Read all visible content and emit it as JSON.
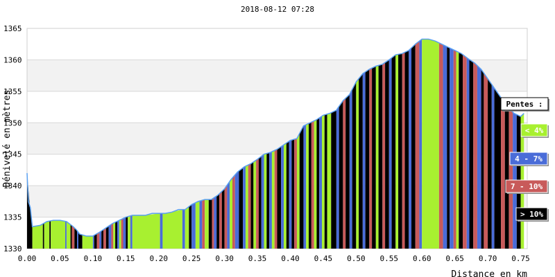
{
  "chart_data": {
    "type": "area",
    "title": "2018-08-12 07:28",
    "xlabel": "Distance en km",
    "ylabel": "Dénivelé en mètres",
    "xlim": [
      0,
      0.76
    ],
    "ylim": [
      1330,
      1365
    ],
    "x_ticks": [
      "0.00",
      "0.05",
      "0.10",
      "0.15",
      "0.20",
      "0.25",
      "0.30",
      "0.35",
      "0.40",
      "0.45",
      "0.50",
      "0.55",
      "0.60",
      "0.65",
      "0.70",
      "0.75"
    ],
    "y_ticks": [
      "1330",
      "1335",
      "1340",
      "1345",
      "1350",
      "1355",
      "1360",
      "1365"
    ],
    "grid": "horizontal bands",
    "profile": [
      [
        0.0,
        1342.0
      ],
      [
        0.002,
        1337.5
      ],
      [
        0.005,
        1336.5
      ],
      [
        0.008,
        1333.5
      ],
      [
        0.02,
        1333.7
      ],
      [
        0.03,
        1334.3
      ],
      [
        0.04,
        1334.5
      ],
      [
        0.05,
        1334.5
      ],
      [
        0.06,
        1334.3
      ],
      [
        0.07,
        1333.5
      ],
      [
        0.075,
        1333.0
      ],
      [
        0.08,
        1332.3
      ],
      [
        0.09,
        1332.0
      ],
      [
        0.1,
        1332.0
      ],
      [
        0.11,
        1332.6
      ],
      [
        0.12,
        1333.3
      ],
      [
        0.13,
        1334.0
      ],
      [
        0.14,
        1334.5
      ],
      [
        0.15,
        1335.0
      ],
      [
        0.16,
        1335.3
      ],
      [
        0.18,
        1335.3
      ],
      [
        0.19,
        1335.6
      ],
      [
        0.21,
        1335.6
      ],
      [
        0.22,
        1335.8
      ],
      [
        0.23,
        1336.2
      ],
      [
        0.24,
        1336.2
      ],
      [
        0.25,
        1337.0
      ],
      [
        0.26,
        1337.5
      ],
      [
        0.27,
        1337.8
      ],
      [
        0.28,
        1337.8
      ],
      [
        0.29,
        1338.5
      ],
      [
        0.3,
        1339.5
      ],
      [
        0.31,
        1341.0
      ],
      [
        0.32,
        1342.2
      ],
      [
        0.33,
        1343.0
      ],
      [
        0.34,
        1343.5
      ],
      [
        0.35,
        1344.2
      ],
      [
        0.36,
        1345.0
      ],
      [
        0.37,
        1345.3
      ],
      [
        0.38,
        1345.8
      ],
      [
        0.39,
        1346.5
      ],
      [
        0.4,
        1347.2
      ],
      [
        0.41,
        1347.5
      ],
      [
        0.42,
        1349.5
      ],
      [
        0.43,
        1350.0
      ],
      [
        0.44,
        1350.5
      ],
      [
        0.45,
        1351.2
      ],
      [
        0.46,
        1351.5
      ],
      [
        0.47,
        1352.0
      ],
      [
        0.48,
        1353.5
      ],
      [
        0.49,
        1354.5
      ],
      [
        0.5,
        1356.5
      ],
      [
        0.51,
        1357.8
      ],
      [
        0.52,
        1358.5
      ],
      [
        0.53,
        1359.0
      ],
      [
        0.54,
        1359.3
      ],
      [
        0.55,
        1360.0
      ],
      [
        0.56,
        1360.8
      ],
      [
        0.57,
        1361.0
      ],
      [
        0.58,
        1361.5
      ],
      [
        0.59,
        1362.5
      ],
      [
        0.6,
        1363.3
      ],
      [
        0.61,
        1363.3
      ],
      [
        0.62,
        1363.0
      ],
      [
        0.63,
        1362.5
      ],
      [
        0.64,
        1362.0
      ],
      [
        0.65,
        1361.5
      ],
      [
        0.66,
        1361.0
      ],
      [
        0.67,
        1360.2
      ],
      [
        0.68,
        1359.5
      ],
      [
        0.69,
        1358.5
      ],
      [
        0.7,
        1357.0
      ],
      [
        0.71,
        1355.5
      ],
      [
        0.72,
        1354.0
      ],
      [
        0.73,
        1352.5
      ],
      [
        0.74,
        1351.5
      ],
      [
        0.75,
        1351.0
      ],
      [
        0.755,
        1351.5
      ]
    ],
    "series": [
      {
        "name": "< 4%",
        "color": "#a8f030"
      },
      {
        "name": "4 - 7%",
        "color": "#4a6cd8"
      },
      {
        "name": "7 - 10%",
        "color": "#c85a5a"
      },
      {
        "name": "> 10%",
        "color": "#000000"
      }
    ],
    "stripes": [
      [
        0.0,
        0.008,
        3
      ],
      [
        0.008,
        0.024,
        0
      ],
      [
        0.024,
        0.026,
        3
      ],
      [
        0.026,
        0.034,
        0
      ],
      [
        0.034,
        0.036,
        3
      ],
      [
        0.036,
        0.058,
        0
      ],
      [
        0.058,
        0.06,
        1
      ],
      [
        0.06,
        0.066,
        0
      ],
      [
        0.066,
        0.068,
        3
      ],
      [
        0.068,
        0.072,
        2
      ],
      [
        0.072,
        0.076,
        3
      ],
      [
        0.076,
        0.078,
        1
      ],
      [
        0.078,
        0.084,
        3
      ],
      [
        0.084,
        0.1,
        0
      ],
      [
        0.1,
        0.102,
        1
      ],
      [
        0.102,
        0.106,
        3
      ],
      [
        0.106,
        0.11,
        2
      ],
      [
        0.11,
        0.113,
        1
      ],
      [
        0.113,
        0.116,
        3
      ],
      [
        0.116,
        0.12,
        2
      ],
      [
        0.12,
        0.124,
        3
      ],
      [
        0.124,
        0.128,
        1
      ],
      [
        0.128,
        0.131,
        2
      ],
      [
        0.131,
        0.134,
        0
      ],
      [
        0.134,
        0.137,
        3
      ],
      [
        0.137,
        0.14,
        1
      ],
      [
        0.14,
        0.143,
        0
      ],
      [
        0.143,
        0.146,
        2
      ],
      [
        0.146,
        0.15,
        1
      ],
      [
        0.15,
        0.153,
        3
      ],
      [
        0.153,
        0.157,
        0
      ],
      [
        0.157,
        0.16,
        1
      ],
      [
        0.16,
        0.202,
        0
      ],
      [
        0.202,
        0.206,
        1
      ],
      [
        0.206,
        0.236,
        0
      ],
      [
        0.236,
        0.24,
        1
      ],
      [
        0.24,
        0.246,
        0
      ],
      [
        0.246,
        0.25,
        3
      ],
      [
        0.25,
        0.256,
        1
      ],
      [
        0.256,
        0.262,
        0
      ],
      [
        0.262,
        0.266,
        1
      ],
      [
        0.266,
        0.27,
        2
      ],
      [
        0.27,
        0.276,
        0
      ],
      [
        0.276,
        0.281,
        3
      ],
      [
        0.281,
        0.284,
        2
      ],
      [
        0.284,
        0.288,
        1
      ],
      [
        0.288,
        0.292,
        3
      ],
      [
        0.292,
        0.296,
        2
      ],
      [
        0.296,
        0.3,
        3
      ],
      [
        0.3,
        0.304,
        2
      ],
      [
        0.304,
        0.308,
        1
      ],
      [
        0.308,
        0.312,
        0
      ],
      [
        0.312,
        0.316,
        2
      ],
      [
        0.316,
        0.322,
        1
      ],
      [
        0.322,
        0.328,
        3
      ],
      [
        0.328,
        0.332,
        1
      ],
      [
        0.332,
        0.336,
        0
      ],
      [
        0.336,
        0.34,
        2
      ],
      [
        0.34,
        0.344,
        3
      ],
      [
        0.344,
        0.348,
        0
      ],
      [
        0.348,
        0.352,
        2
      ],
      [
        0.352,
        0.356,
        3
      ],
      [
        0.356,
        0.36,
        1
      ],
      [
        0.36,
        0.364,
        0
      ],
      [
        0.364,
        0.368,
        3
      ],
      [
        0.368,
        0.372,
        1
      ],
      [
        0.372,
        0.376,
        0
      ],
      [
        0.376,
        0.38,
        2
      ],
      [
        0.38,
        0.386,
        3
      ],
      [
        0.386,
        0.39,
        1
      ],
      [
        0.39,
        0.394,
        0
      ],
      [
        0.394,
        0.398,
        3
      ],
      [
        0.398,
        0.402,
        1
      ],
      [
        0.402,
        0.406,
        3
      ],
      [
        0.406,
        0.41,
        2
      ],
      [
        0.41,
        0.414,
        0
      ],
      [
        0.414,
        0.42,
        3
      ],
      [
        0.42,
        0.424,
        1
      ],
      [
        0.424,
        0.428,
        0
      ],
      [
        0.428,
        0.432,
        3
      ],
      [
        0.432,
        0.436,
        2
      ],
      [
        0.436,
        0.44,
        0
      ],
      [
        0.44,
        0.444,
        3
      ],
      [
        0.444,
        0.448,
        1
      ],
      [
        0.448,
        0.452,
        0
      ],
      [
        0.452,
        0.456,
        3
      ],
      [
        0.456,
        0.462,
        0
      ],
      [
        0.462,
        0.47,
        3
      ],
      [
        0.47,
        0.474,
        1
      ],
      [
        0.474,
        0.48,
        3
      ],
      [
        0.48,
        0.484,
        2
      ],
      [
        0.484,
        0.49,
        3
      ],
      [
        0.49,
        0.494,
        1
      ],
      [
        0.494,
        0.5,
        3
      ],
      [
        0.5,
        0.504,
        0
      ],
      [
        0.504,
        0.51,
        3
      ],
      [
        0.51,
        0.514,
        1
      ],
      [
        0.514,
        0.52,
        3
      ],
      [
        0.52,
        0.524,
        2
      ],
      [
        0.524,
        0.53,
        3
      ],
      [
        0.53,
        0.534,
        0
      ],
      [
        0.534,
        0.54,
        3
      ],
      [
        0.54,
        0.544,
        2
      ],
      [
        0.544,
        0.55,
        3
      ],
      [
        0.55,
        0.554,
        1
      ],
      [
        0.554,
        0.56,
        3
      ],
      [
        0.56,
        0.564,
        0
      ],
      [
        0.564,
        0.57,
        3
      ],
      [
        0.57,
        0.574,
        2
      ],
      [
        0.574,
        0.58,
        3
      ],
      [
        0.58,
        0.584,
        1
      ],
      [
        0.584,
        0.59,
        3
      ],
      [
        0.59,
        0.596,
        2
      ],
      [
        0.596,
        0.6,
        1
      ],
      [
        0.6,
        0.626,
        0
      ],
      [
        0.626,
        0.632,
        2
      ],
      [
        0.632,
        0.638,
        1
      ],
      [
        0.638,
        0.642,
        3
      ],
      [
        0.642,
        0.648,
        1
      ],
      [
        0.648,
        0.652,
        2
      ],
      [
        0.652,
        0.656,
        0
      ],
      [
        0.656,
        0.662,
        3
      ],
      [
        0.662,
        0.668,
        2
      ],
      [
        0.668,
        0.672,
        1
      ],
      [
        0.672,
        0.678,
        3
      ],
      [
        0.678,
        0.684,
        2
      ],
      [
        0.684,
        0.69,
        1
      ],
      [
        0.69,
        0.694,
        3
      ],
      [
        0.694,
        0.7,
        2
      ],
      [
        0.7,
        0.706,
        3
      ],
      [
        0.706,
        0.71,
        1
      ],
      [
        0.71,
        0.72,
        3
      ],
      [
        0.72,
        0.726,
        2
      ],
      [
        0.726,
        0.732,
        3
      ],
      [
        0.732,
        0.738,
        2
      ],
      [
        0.738,
        0.744,
        1
      ],
      [
        0.744,
        0.75,
        3
      ],
      [
        0.75,
        0.755,
        0
      ]
    ],
    "legend": {
      "title": "Pentes :",
      "placement": "right",
      "entries": [
        "< 4%",
        "4 - 7%",
        "7 - 10%",
        "> 10%"
      ]
    }
  }
}
